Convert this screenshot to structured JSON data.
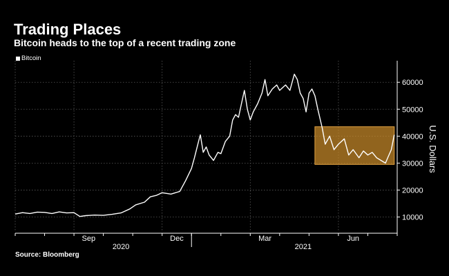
{
  "chart_data": {
    "type": "line",
    "title": "Trading Places",
    "subtitle": "Bitcoin heads to the top of a recent trading zone",
    "legend": [
      "Bitcoin"
    ],
    "ylabel": "U.S. Dollars",
    "source": "Source: Bloomberg",
    "ylim": [
      5000,
      68000
    ],
    "yticks": [
      10000,
      20000,
      30000,
      40000,
      50000,
      60000
    ],
    "x_start": "2020-07-01",
    "x_end": "2021-07-31",
    "month_labels": [
      {
        "label": "Sep",
        "month": 2.5
      },
      {
        "label": "Dec",
        "month": 5.5
      },
      {
        "label": "Mar",
        "month": 8.5
      },
      {
        "label": "Jun",
        "month": 11.5
      }
    ],
    "year_labels": [
      {
        "label": "2020",
        "month": 3.6
      },
      {
        "label": "2021",
        "month": 9.8
      }
    ],
    "gridlines_x_months": [
      0,
      2,
      5,
      8,
      11
    ],
    "year_divider_month": 6,
    "trading_zone": {
      "x0_month": 10.2,
      "x1_month": 12.9,
      "y0": 29500,
      "y1": 43500,
      "color": "#c98a2a"
    },
    "series": [
      {
        "name": "Bitcoin",
        "color": "#ffffff",
        "points": [
          [
            0.0,
            11100
          ],
          [
            0.25,
            11600
          ],
          [
            0.5,
            11300
          ],
          [
            0.75,
            11800
          ],
          [
            1.0,
            11700
          ],
          [
            1.25,
            11300
          ],
          [
            1.5,
            11900
          ],
          [
            1.75,
            11500
          ],
          [
            2.0,
            11600
          ],
          [
            2.2,
            10200
          ],
          [
            2.4,
            10500
          ],
          [
            2.7,
            10700
          ],
          [
            3.0,
            10600
          ],
          [
            3.3,
            11000
          ],
          [
            3.6,
            11500
          ],
          [
            3.9,
            13000
          ],
          [
            4.1,
            14500
          ],
          [
            4.4,
            15500
          ],
          [
            4.6,
            17500
          ],
          [
            4.8,
            18000
          ],
          [
            5.0,
            19000
          ],
          [
            5.3,
            18500
          ],
          [
            5.6,
            19500
          ],
          [
            5.8,
            23500
          ],
          [
            6.0,
            28000
          ],
          [
            6.1,
            32000
          ],
          [
            6.25,
            38500
          ],
          [
            6.3,
            40500
          ],
          [
            6.4,
            34000
          ],
          [
            6.5,
            36000
          ],
          [
            6.6,
            33000
          ],
          [
            6.75,
            31000
          ],
          [
            6.9,
            34000
          ],
          [
            7.0,
            33500
          ],
          [
            7.15,
            38000
          ],
          [
            7.3,
            40000
          ],
          [
            7.4,
            46000
          ],
          [
            7.5,
            48000
          ],
          [
            7.6,
            47000
          ],
          [
            7.7,
            52000
          ],
          [
            7.8,
            57000
          ],
          [
            7.9,
            50000
          ],
          [
            8.0,
            46000
          ],
          [
            8.1,
            49000
          ],
          [
            8.25,
            52000
          ],
          [
            8.4,
            56000
          ],
          [
            8.5,
            61000
          ],
          [
            8.6,
            55000
          ],
          [
            8.75,
            57500
          ],
          [
            8.9,
            59000
          ],
          [
            9.0,
            57000
          ],
          [
            9.2,
            59000
          ],
          [
            9.35,
            57000
          ],
          [
            9.5,
            63000
          ],
          [
            9.6,
            61000
          ],
          [
            9.7,
            56000
          ],
          [
            9.8,
            54000
          ],
          [
            9.9,
            49000
          ],
          [
            10.0,
            56000
          ],
          [
            10.1,
            57500
          ],
          [
            10.2,
            55000
          ],
          [
            10.3,
            50000
          ],
          [
            10.45,
            43000
          ],
          [
            10.55,
            37000
          ],
          [
            10.7,
            40000
          ],
          [
            10.85,
            35000
          ],
          [
            11.0,
            37000
          ],
          [
            11.2,
            39000
          ],
          [
            11.35,
            33000
          ],
          [
            11.5,
            35000
          ],
          [
            11.7,
            32000
          ],
          [
            11.85,
            34500
          ],
          [
            12.0,
            33000
          ],
          [
            12.15,
            34000
          ],
          [
            12.3,
            32000
          ],
          [
            12.45,
            31000
          ],
          [
            12.6,
            30000
          ],
          [
            12.7,
            32500
          ],
          [
            12.8,
            35000
          ],
          [
            12.9,
            40500
          ]
        ]
      }
    ]
  }
}
